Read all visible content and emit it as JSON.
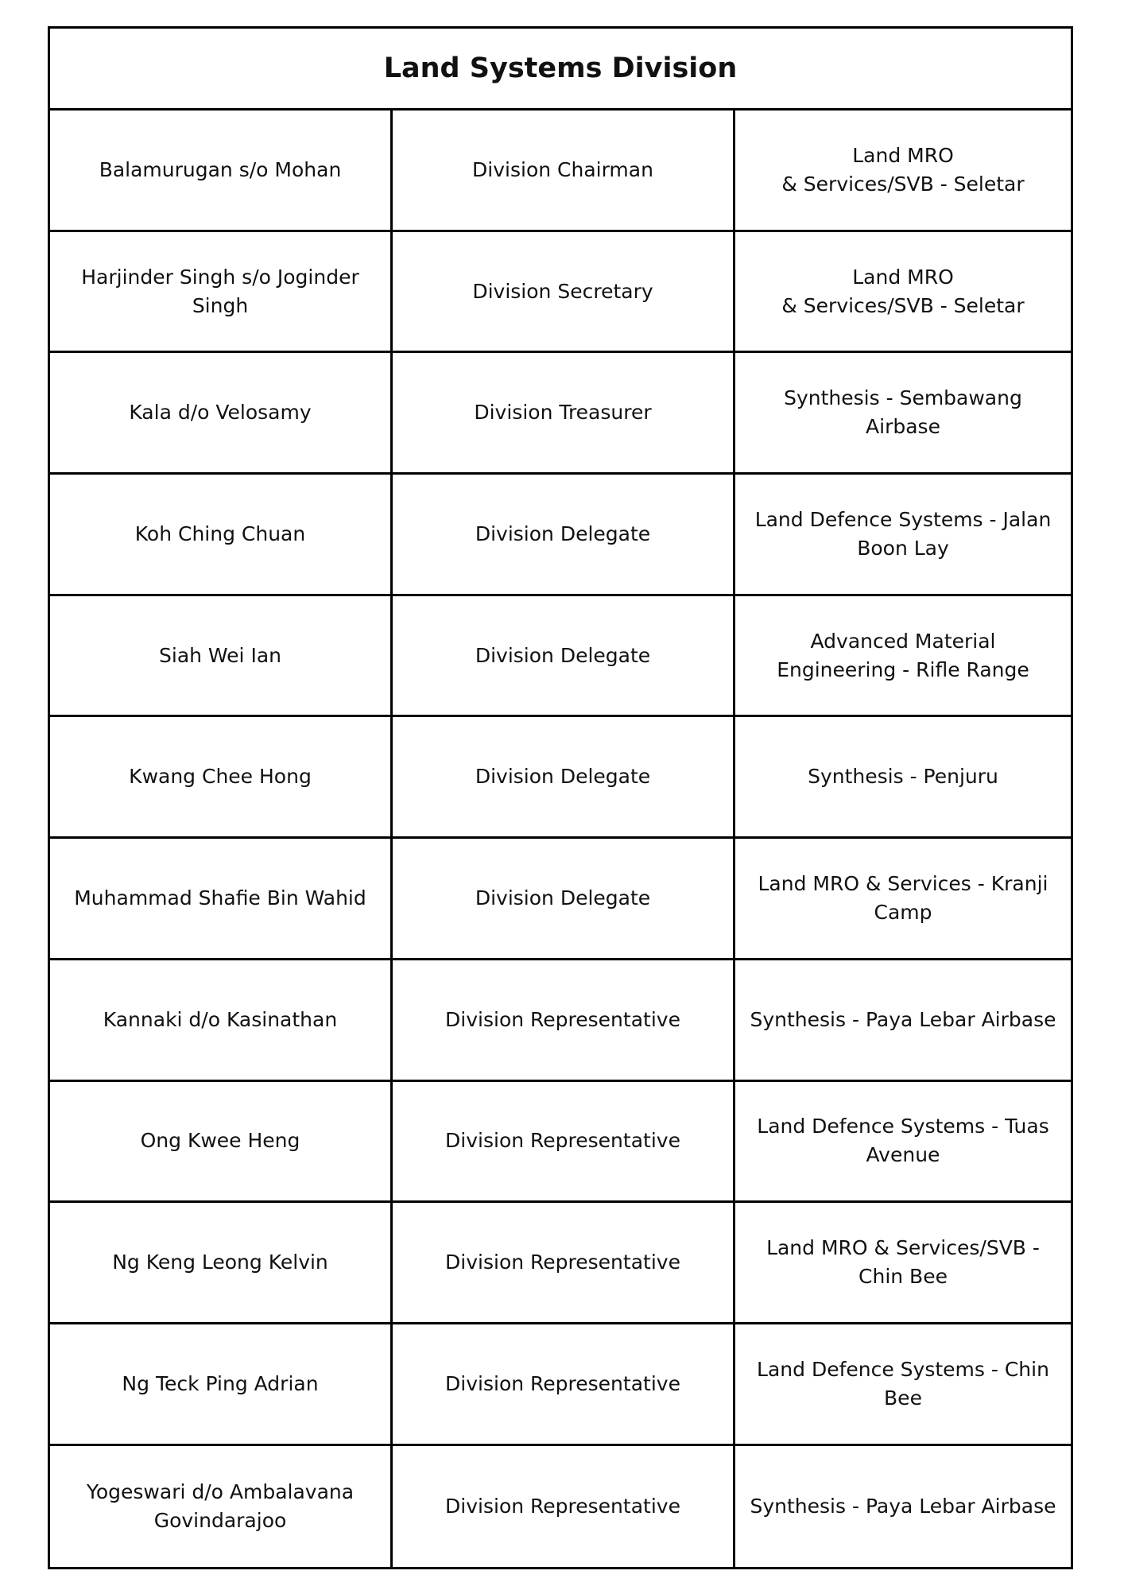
{
  "title": "Land Systems Division",
  "rows": [
    {
      "name": "Balamurugan s/o Mohan",
      "role": "Division Chairman",
      "location": "Land MRO\n& Services/SVB - Seletar"
    },
    {
      "name": "Harjinder Singh s/o Joginder Singh",
      "role": "Division Secretary",
      "location": "Land MRO\n& Services/SVB - Seletar"
    },
    {
      "name": "Kala d/o Velosamy",
      "role": "Division Treasurer",
      "location": "Synthesis - Sembawang Airbase"
    },
    {
      "name": "Koh Ching Chuan",
      "role": "Division Delegate",
      "location": "Land Defence Systems - Jalan Boon Lay"
    },
    {
      "name": "Siah Wei Ian",
      "role": "Division Delegate",
      "location": "Advanced Material Engineering - Rifle Range"
    },
    {
      "name": "Kwang Chee Hong",
      "role": "Division Delegate",
      "location": "Synthesis - Penjuru"
    },
    {
      "name": "Muhammad Shafie Bin Wahid",
      "role": "Division Delegate",
      "location": "Land MRO & Services - Kranji Camp"
    },
    {
      "name": "Kannaki d/o Kasinathan",
      "role": "Division Representative",
      "location": "Synthesis - Paya Lebar Airbase"
    },
    {
      "name": "Ong Kwee Heng",
      "role": "Division  Representative",
      "location": "Land Defence Systems - Tuas Avenue"
    },
    {
      "name": "Ng Keng Leong Kelvin",
      "role": "Division Representative",
      "location": "Land MRO & Services/SVB - Chin Bee"
    },
    {
      "name": "Ng Teck Ping Adrian",
      "role": "Division  Representative",
      "location": "Land Defence Systems - Chin Bee"
    },
    {
      "name": "Yogeswari d/o Ambalavana Govindarajoo",
      "role": "Division Representative",
      "location": "Synthesis - Paya Lebar Airbase"
    }
  ]
}
